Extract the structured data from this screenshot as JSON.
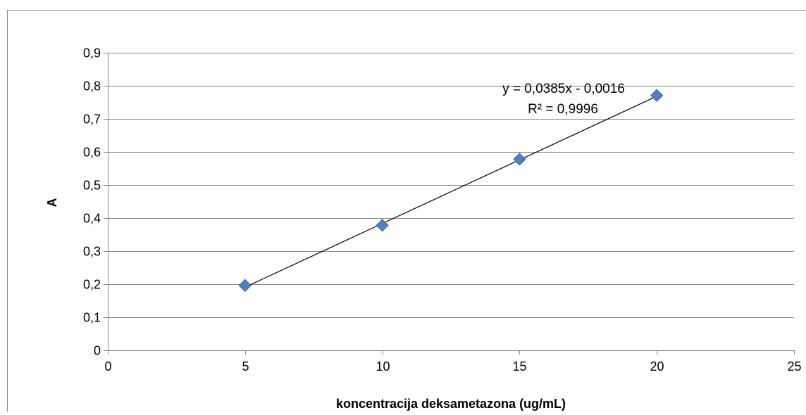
{
  "chart_data": {
    "type": "scatter",
    "title": "",
    "xlabel": "koncentracija deksametazona (ug/mL)",
    "ylabel": "A",
    "xlim": [
      0,
      25
    ],
    "ylim": [
      0,
      0.9
    ],
    "x_ticks": [
      0,
      5,
      10,
      15,
      20,
      25
    ],
    "y_ticks": [
      0,
      0.1,
      0.2,
      0.3,
      0.4,
      0.5,
      0.6,
      0.7,
      0.8,
      0.9
    ],
    "x_tick_labels": [
      "0",
      "5",
      "10",
      "15",
      "20",
      "25"
    ],
    "y_tick_labels": [
      "0",
      "0,1",
      "0,2",
      "0,3",
      "0,4",
      "0,5",
      "0,6",
      "0,7",
      "0,8",
      "0,9"
    ],
    "grid": "horizontal",
    "legend": "none",
    "series": [
      {
        "x": [
          5,
          10,
          15,
          20
        ],
        "y": [
          0.196,
          0.378,
          0.578,
          0.771
        ],
        "color": "#4f81bd",
        "marker": "diamond"
      }
    ],
    "trendline": {
      "type": "linear",
      "slope": 0.0385,
      "intercept": -0.0016,
      "x_range": [
        5,
        20
      ],
      "color": "#000000"
    },
    "annotations": {
      "equation": "y = 0,0385x - 0,0016",
      "r_squared": "R² = 0,9996"
    }
  }
}
